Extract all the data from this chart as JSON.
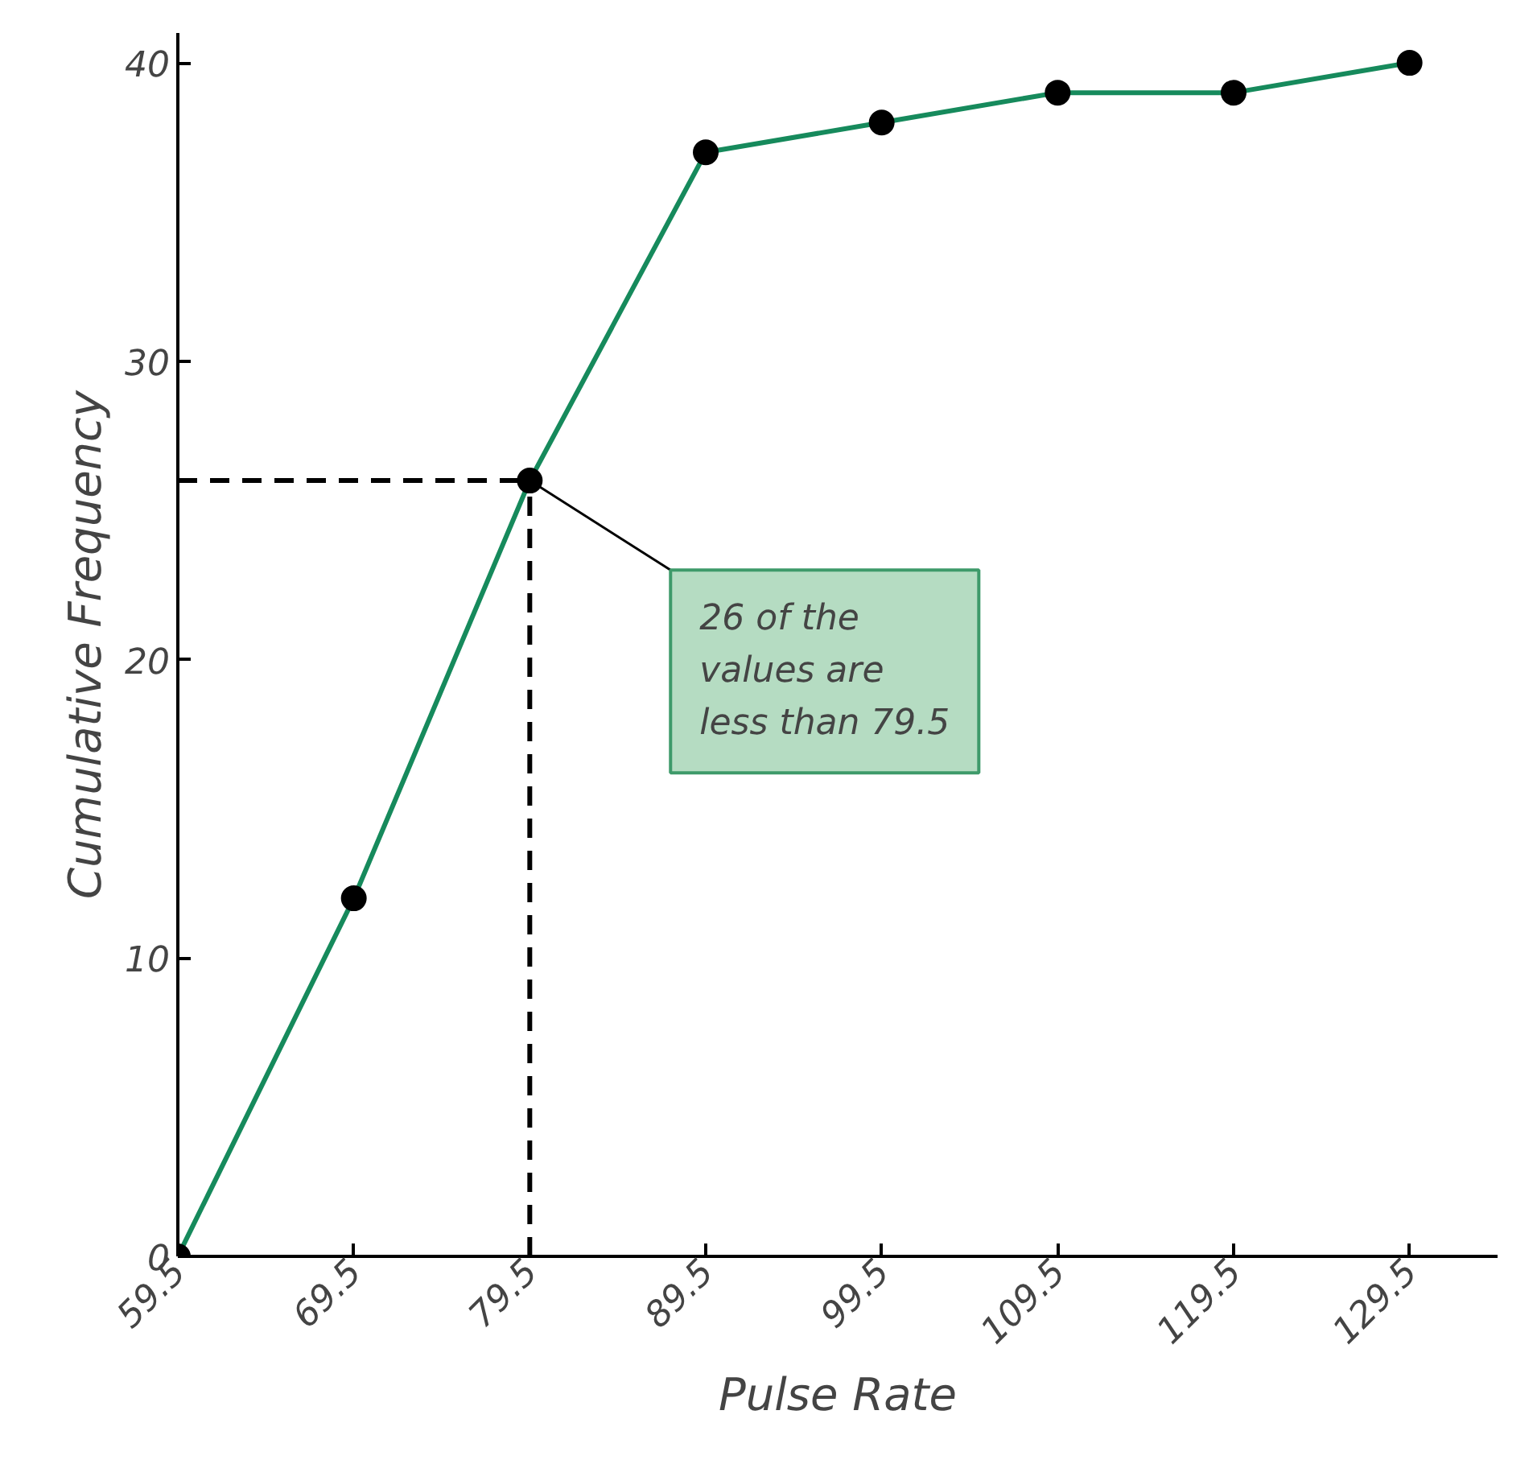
{
  "chart_data": {
    "type": "line",
    "xlabel": "Pulse Rate",
    "ylabel": "Cumulative Frequency",
    "x": [
      59.5,
      69.5,
      79.5,
      89.5,
      99.5,
      109.5,
      119.5,
      129.5
    ],
    "series": [
      {
        "color": "#168a5c",
        "values": [
          0,
          12,
          26,
          37,
          38,
          39,
          39,
          40
        ]
      }
    ],
    "marker": "circle",
    "line_style": "solid",
    "grid": false,
    "xlim": [
      59.5,
      134.5
    ],
    "ylim": [
      0,
      41
    ],
    "xticks": [
      59.5,
      69.5,
      79.5,
      89.5,
      99.5,
      109.5,
      119.5,
      129.5
    ],
    "yticks": [
      0,
      10,
      20,
      30,
      40
    ],
    "ref_lines": [
      {
        "axis": "x",
        "value": 79.5,
        "line_style": "dashed",
        "color": "#000000"
      },
      {
        "axis": "y",
        "value": 26,
        "line_style": "dashed",
        "color": "#000000"
      }
    ],
    "annotations": [
      {
        "text": "26 of the\nvalues are\nless than 79.5",
        "x": 79.5,
        "y": 26
      }
    ]
  }
}
